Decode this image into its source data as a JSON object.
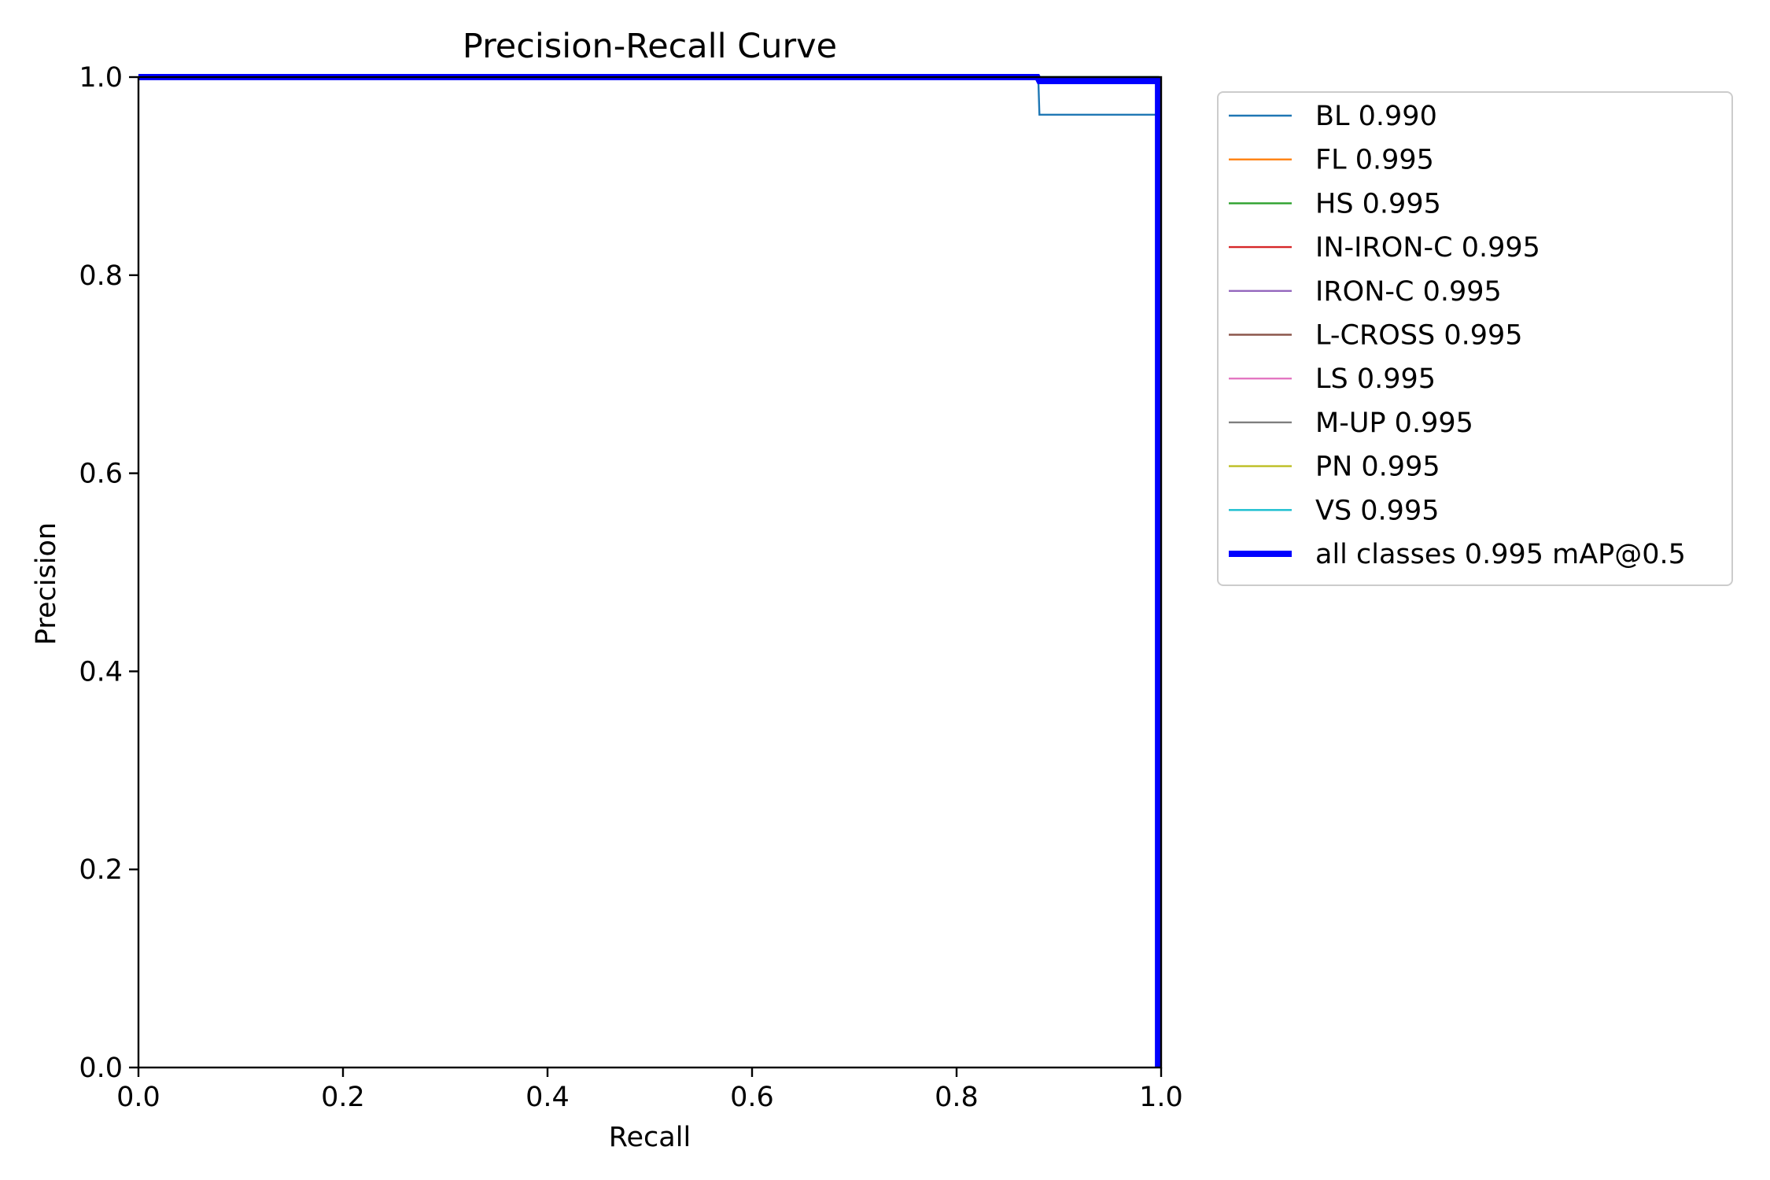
{
  "chart_data": {
    "type": "line",
    "title": "Precision-Recall Curve",
    "xlabel": "Recall",
    "ylabel": "Precision",
    "xlim": [
      0,
      1
    ],
    "ylim": [
      0,
      1
    ],
    "x_ticks": [
      "0.0",
      "0.2",
      "0.4",
      "0.6",
      "0.8",
      "1.0"
    ],
    "y_ticks": [
      "0.0",
      "0.2",
      "0.4",
      "0.6",
      "0.8",
      "1.0"
    ],
    "grid": false,
    "legend_position": "outside-right",
    "series": [
      {
        "name": "BL 0.990",
        "color": "#1f77b4",
        "highlight": false,
        "points": [
          [
            0,
            1
          ],
          [
            0.878,
            1
          ],
          [
            0.88,
            0.995
          ],
          [
            0.881,
            0.962
          ],
          [
            0.997,
            0.962
          ],
          [
            0.997,
            0.0
          ]
        ]
      },
      {
        "name": "FL 0.995",
        "color": "#ff7f0e",
        "highlight": false,
        "points": [
          [
            0,
            1
          ],
          [
            0.997,
            1
          ],
          [
            0.997,
            0.0
          ]
        ]
      },
      {
        "name": "HS 0.995",
        "color": "#2ca02c",
        "highlight": false,
        "points": [
          [
            0,
            1
          ],
          [
            0.997,
            1
          ],
          [
            0.997,
            0.0
          ]
        ]
      },
      {
        "name": "IN-IRON-C 0.995",
        "color": "#d62728",
        "highlight": false,
        "points": [
          [
            0,
            1
          ],
          [
            0.997,
            1
          ],
          [
            0.997,
            0.0
          ]
        ]
      },
      {
        "name": "IRON-C 0.995",
        "color": "#9467bd",
        "highlight": false,
        "points": [
          [
            0,
            1
          ],
          [
            0.997,
            1
          ],
          [
            0.997,
            0.0
          ]
        ]
      },
      {
        "name": "L-CROSS 0.995",
        "color": "#8c564b",
        "highlight": false,
        "points": [
          [
            0,
            1
          ],
          [
            0.997,
            1
          ],
          [
            0.997,
            0.0
          ]
        ]
      },
      {
        "name": "LS 0.995",
        "color": "#e377c2",
        "highlight": false,
        "points": [
          [
            0,
            1
          ],
          [
            0.997,
            1
          ],
          [
            0.997,
            0.0
          ]
        ]
      },
      {
        "name": "M-UP 0.995",
        "color": "#7f7f7f",
        "highlight": false,
        "points": [
          [
            0,
            1
          ],
          [
            0.997,
            1
          ],
          [
            0.997,
            0.0
          ]
        ]
      },
      {
        "name": "PN 0.995",
        "color": "#bcbd22",
        "highlight": false,
        "points": [
          [
            0,
            1
          ],
          [
            0.997,
            1
          ],
          [
            0.997,
            0.0
          ]
        ]
      },
      {
        "name": "VS 0.995",
        "color": "#17becf",
        "highlight": false,
        "points": [
          [
            0,
            1
          ],
          [
            0.997,
            1
          ],
          [
            0.997,
            0.0
          ]
        ]
      },
      {
        "name": "all classes 0.995 mAP@0.5",
        "color": "#0000ff",
        "highlight": true,
        "points": [
          [
            0,
            1
          ],
          [
            0.879,
            1
          ],
          [
            0.881,
            0.996
          ],
          [
            0.997,
            0.996
          ],
          [
            0.997,
            0.0
          ]
        ]
      }
    ]
  }
}
